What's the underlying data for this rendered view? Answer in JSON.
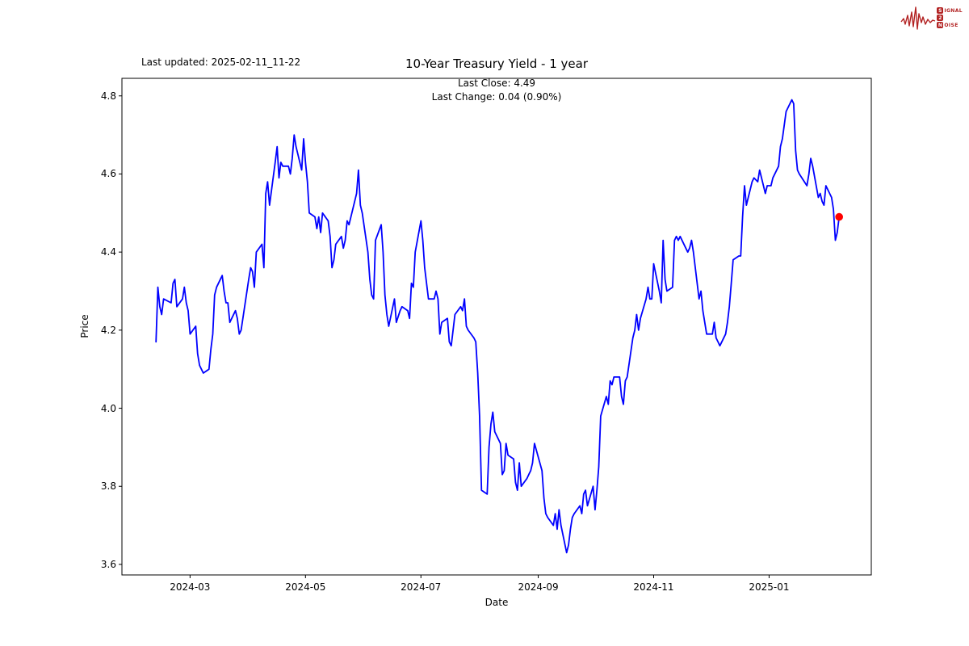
{
  "window": {
    "background": "#ffffff"
  },
  "annotations": {
    "last_updated": "Last updated: 2025-02-11_11-22"
  },
  "logo": {
    "name": "signal-2-noise",
    "color": "#b22222",
    "rows": [
      {
        "initial": "S",
        "rest": "IGNAL"
      },
      {
        "initial": "2",
        "rest": ""
      },
      {
        "initial": "N",
        "rest": "OISE"
      }
    ]
  },
  "chart_data": {
    "type": "line",
    "title": "10-Year Treasury Yield - 1 year",
    "subtitle_lines": [
      "Last Close: 4.49",
      "Last Change: 0.04 (0.90%)"
    ],
    "last_close": 4.49,
    "last_change": "0.04 (0.90%)",
    "xlabel": "Date",
    "ylabel": "Price",
    "grid": false,
    "legend": "none",
    "line_color": "#0000ff",
    "last_point_marker_color": "#ff0000",
    "xlim": [
      "2024-01-25",
      "2025-02-24"
    ],
    "ylim": [
      3.573,
      4.845
    ],
    "yticks": [
      {
        "label": "3.6",
        "value": 3.6
      },
      {
        "label": "3.8",
        "value": 3.8
      },
      {
        "label": "4.0",
        "value": 4.0
      },
      {
        "label": "4.2",
        "value": 4.2
      },
      {
        "label": "4.4",
        "value": 4.4
      },
      {
        "label": "4.6",
        "value": 4.6
      },
      {
        "label": "4.8",
        "value": 4.8
      }
    ],
    "xticks": [
      {
        "label": "2024-03",
        "date": "2024-03-01"
      },
      {
        "label": "2024-05",
        "date": "2024-05-01"
      },
      {
        "label": "2024-07",
        "date": "2024-07-01"
      },
      {
        "label": "2024-09",
        "date": "2024-09-01"
      },
      {
        "label": "2024-11",
        "date": "2024-11-01"
      },
      {
        "label": "2025-01",
        "date": "2025-01-01"
      }
    ],
    "series": [
      [
        "2024-02-12",
        4.17
      ],
      [
        "2024-02-13",
        4.31
      ],
      [
        "2024-02-14",
        4.26
      ],
      [
        "2024-02-15",
        4.24
      ],
      [
        "2024-02-16",
        4.28
      ],
      [
        "2024-02-20",
        4.27
      ],
      [
        "2024-02-21",
        4.32
      ],
      [
        "2024-02-22",
        4.33
      ],
      [
        "2024-02-23",
        4.26
      ],
      [
        "2024-02-26",
        4.28
      ],
      [
        "2024-02-27",
        4.31
      ],
      [
        "2024-02-28",
        4.27
      ],
      [
        "2024-02-29",
        4.25
      ],
      [
        "2024-03-01",
        4.19
      ],
      [
        "2024-03-04",
        4.21
      ],
      [
        "2024-03-05",
        4.14
      ],
      [
        "2024-03-06",
        4.11
      ],
      [
        "2024-03-07",
        4.1
      ],
      [
        "2024-03-08",
        4.09
      ],
      [
        "2024-03-11",
        4.1
      ],
      [
        "2024-03-12",
        4.15
      ],
      [
        "2024-03-13",
        4.19
      ],
      [
        "2024-03-14",
        4.29
      ],
      [
        "2024-03-15",
        4.31
      ],
      [
        "2024-03-18",
        4.34
      ],
      [
        "2024-03-19",
        4.3
      ],
      [
        "2024-03-20",
        4.27
      ],
      [
        "2024-03-21",
        4.27
      ],
      [
        "2024-03-22",
        4.22
      ],
      [
        "2024-03-25",
        4.25
      ],
      [
        "2024-03-26",
        4.23
      ],
      [
        "2024-03-27",
        4.19
      ],
      [
        "2024-03-28",
        4.2
      ],
      [
        "2024-04-01",
        4.33
      ],
      [
        "2024-04-02",
        4.36
      ],
      [
        "2024-04-03",
        4.35
      ],
      [
        "2024-04-04",
        4.31
      ],
      [
        "2024-04-05",
        4.4
      ],
      [
        "2024-04-08",
        4.42
      ],
      [
        "2024-04-09",
        4.36
      ],
      [
        "2024-04-10",
        4.55
      ],
      [
        "2024-04-11",
        4.58
      ],
      [
        "2024-04-12",
        4.52
      ],
      [
        "2024-04-15",
        4.63
      ],
      [
        "2024-04-16",
        4.67
      ],
      [
        "2024-04-17",
        4.59
      ],
      [
        "2024-04-18",
        4.63
      ],
      [
        "2024-04-19",
        4.62
      ],
      [
        "2024-04-22",
        4.62
      ],
      [
        "2024-04-23",
        4.6
      ],
      [
        "2024-04-24",
        4.64
      ],
      [
        "2024-04-25",
        4.7
      ],
      [
        "2024-04-26",
        4.67
      ],
      [
        "2024-04-29",
        4.61
      ],
      [
        "2024-04-30",
        4.69
      ],
      [
        "2024-05-01",
        4.63
      ],
      [
        "2024-05-02",
        4.58
      ],
      [
        "2024-05-03",
        4.5
      ],
      [
        "2024-05-06",
        4.49
      ],
      [
        "2024-05-07",
        4.46
      ],
      [
        "2024-05-08",
        4.49
      ],
      [
        "2024-05-09",
        4.45
      ],
      [
        "2024-05-10",
        4.5
      ],
      [
        "2024-05-13",
        4.48
      ],
      [
        "2024-05-14",
        4.44
      ],
      [
        "2024-05-15",
        4.36
      ],
      [
        "2024-05-16",
        4.38
      ],
      [
        "2024-05-17",
        4.42
      ],
      [
        "2024-05-20",
        4.44
      ],
      [
        "2024-05-21",
        4.41
      ],
      [
        "2024-05-22",
        4.43
      ],
      [
        "2024-05-23",
        4.48
      ],
      [
        "2024-05-24",
        4.47
      ],
      [
        "2024-05-28",
        4.55
      ],
      [
        "2024-05-29",
        4.61
      ],
      [
        "2024-05-30",
        4.52
      ],
      [
        "2024-05-31",
        4.5
      ],
      [
        "2024-06-03",
        4.4
      ],
      [
        "2024-06-04",
        4.33
      ],
      [
        "2024-06-05",
        4.29
      ],
      [
        "2024-06-06",
        4.28
      ],
      [
        "2024-06-07",
        4.43
      ],
      [
        "2024-06-10",
        4.47
      ],
      [
        "2024-06-11",
        4.4
      ],
      [
        "2024-06-12",
        4.29
      ],
      [
        "2024-06-13",
        4.24
      ],
      [
        "2024-06-14",
        4.21
      ],
      [
        "2024-06-17",
        4.28
      ],
      [
        "2024-06-18",
        4.22
      ],
      [
        "2024-06-20",
        4.25
      ],
      [
        "2024-06-21",
        4.26
      ],
      [
        "2024-06-24",
        4.25
      ],
      [
        "2024-06-25",
        4.23
      ],
      [
        "2024-06-26",
        4.32
      ],
      [
        "2024-06-27",
        4.31
      ],
      [
        "2024-06-28",
        4.4
      ],
      [
        "2024-07-01",
        4.48
      ],
      [
        "2024-07-02",
        4.43
      ],
      [
        "2024-07-03",
        4.36
      ],
      [
        "2024-07-05",
        4.28
      ],
      [
        "2024-07-08",
        4.28
      ],
      [
        "2024-07-09",
        4.3
      ],
      [
        "2024-07-10",
        4.28
      ],
      [
        "2024-07-11",
        4.19
      ],
      [
        "2024-07-12",
        4.22
      ],
      [
        "2024-07-15",
        4.23
      ],
      [
        "2024-07-16",
        4.17
      ],
      [
        "2024-07-17",
        4.16
      ],
      [
        "2024-07-18",
        4.2
      ],
      [
        "2024-07-19",
        4.24
      ],
      [
        "2024-07-22",
        4.26
      ],
      [
        "2024-07-23",
        4.25
      ],
      [
        "2024-07-24",
        4.28
      ],
      [
        "2024-07-25",
        4.21
      ],
      [
        "2024-07-26",
        4.2
      ],
      [
        "2024-07-29",
        4.18
      ],
      [
        "2024-07-30",
        4.17
      ],
      [
        "2024-07-31",
        4.09
      ],
      [
        "2024-08-01",
        3.98
      ],
      [
        "2024-08-02",
        3.79
      ],
      [
        "2024-08-05",
        3.78
      ],
      [
        "2024-08-06",
        3.9
      ],
      [
        "2024-08-07",
        3.96
      ],
      [
        "2024-08-08",
        3.99
      ],
      [
        "2024-08-09",
        3.94
      ],
      [
        "2024-08-12",
        3.91
      ],
      [
        "2024-08-13",
        3.83
      ],
      [
        "2024-08-14",
        3.84
      ],
      [
        "2024-08-15",
        3.91
      ],
      [
        "2024-08-16",
        3.88
      ],
      [
        "2024-08-19",
        3.87
      ],
      [
        "2024-08-20",
        3.81
      ],
      [
        "2024-08-21",
        3.79
      ],
      [
        "2024-08-22",
        3.86
      ],
      [
        "2024-08-23",
        3.8
      ],
      [
        "2024-08-26",
        3.82
      ],
      [
        "2024-08-27",
        3.83
      ],
      [
        "2024-08-28",
        3.84
      ],
      [
        "2024-08-29",
        3.86
      ],
      [
        "2024-08-30",
        3.91
      ],
      [
        "2024-09-03",
        3.84
      ],
      [
        "2024-09-04",
        3.77
      ],
      [
        "2024-09-05",
        3.73
      ],
      [
        "2024-09-06",
        3.72
      ],
      [
        "2024-09-09",
        3.7
      ],
      [
        "2024-09-10",
        3.73
      ],
      [
        "2024-09-11",
        3.69
      ],
      [
        "2024-09-12",
        3.74
      ],
      [
        "2024-09-13",
        3.7
      ],
      [
        "2024-09-16",
        3.63
      ],
      [
        "2024-09-17",
        3.65
      ],
      [
        "2024-09-18",
        3.69
      ],
      [
        "2024-09-19",
        3.72
      ],
      [
        "2024-09-20",
        3.73
      ],
      [
        "2024-09-23",
        3.75
      ],
      [
        "2024-09-24",
        3.73
      ],
      [
        "2024-09-25",
        3.78
      ],
      [
        "2024-09-26",
        3.79
      ],
      [
        "2024-09-27",
        3.75
      ],
      [
        "2024-09-30",
        3.8
      ],
      [
        "2024-10-01",
        3.74
      ],
      [
        "2024-10-02",
        3.79
      ],
      [
        "2024-10-03",
        3.85
      ],
      [
        "2024-10-04",
        3.98
      ],
      [
        "2024-10-07",
        4.03
      ],
      [
        "2024-10-08",
        4.01
      ],
      [
        "2024-10-09",
        4.07
      ],
      [
        "2024-10-10",
        4.06
      ],
      [
        "2024-10-11",
        4.08
      ],
      [
        "2024-10-14",
        4.08
      ],
      [
        "2024-10-15",
        4.03
      ],
      [
        "2024-10-16",
        4.01
      ],
      [
        "2024-10-17",
        4.07
      ],
      [
        "2024-10-18",
        4.08
      ],
      [
        "2024-10-21",
        4.18
      ],
      [
        "2024-10-22",
        4.2
      ],
      [
        "2024-10-23",
        4.24
      ],
      [
        "2024-10-24",
        4.2
      ],
      [
        "2024-10-25",
        4.23
      ],
      [
        "2024-10-28",
        4.28
      ],
      [
        "2024-10-29",
        4.31
      ],
      [
        "2024-10-30",
        4.28
      ],
      [
        "2024-10-31",
        4.28
      ],
      [
        "2024-11-01",
        4.37
      ],
      [
        "2024-11-04",
        4.3
      ],
      [
        "2024-11-05",
        4.27
      ],
      [
        "2024-11-06",
        4.43
      ],
      [
        "2024-11-07",
        4.33
      ],
      [
        "2024-11-08",
        4.3
      ],
      [
        "2024-11-11",
        4.31
      ],
      [
        "2024-11-12",
        4.43
      ],
      [
        "2024-11-13",
        4.44
      ],
      [
        "2024-11-14",
        4.43
      ],
      [
        "2024-11-15",
        4.44
      ],
      [
        "2024-11-18",
        4.41
      ],
      [
        "2024-11-19",
        4.4
      ],
      [
        "2024-11-20",
        4.41
      ],
      [
        "2024-11-21",
        4.43
      ],
      [
        "2024-11-22",
        4.4
      ],
      [
        "2024-11-25",
        4.28
      ],
      [
        "2024-11-26",
        4.3
      ],
      [
        "2024-11-27",
        4.25
      ],
      [
        "2024-11-29",
        4.19
      ],
      [
        "2024-12-02",
        4.19
      ],
      [
        "2024-12-03",
        4.22
      ],
      [
        "2024-12-04",
        4.18
      ],
      [
        "2024-12-05",
        4.17
      ],
      [
        "2024-12-06",
        4.16
      ],
      [
        "2024-12-09",
        4.19
      ],
      [
        "2024-12-10",
        4.22
      ],
      [
        "2024-12-11",
        4.26
      ],
      [
        "2024-12-12",
        4.32
      ],
      [
        "2024-12-13",
        4.38
      ],
      [
        "2024-12-16",
        4.39
      ],
      [
        "2024-12-17",
        4.39
      ],
      [
        "2024-12-18",
        4.49
      ],
      [
        "2024-12-19",
        4.57
      ],
      [
        "2024-12-20",
        4.52
      ],
      [
        "2024-12-23",
        4.58
      ],
      [
        "2024-12-24",
        4.59
      ],
      [
        "2024-12-26",
        4.58
      ],
      [
        "2024-12-27",
        4.61
      ],
      [
        "2024-12-30",
        4.55
      ],
      [
        "2024-12-31",
        4.57
      ],
      [
        "2025-01-02",
        4.57
      ],
      [
        "2025-01-03",
        4.59
      ],
      [
        "2025-01-06",
        4.62
      ],
      [
        "2025-01-07",
        4.67
      ],
      [
        "2025-01-08",
        4.69
      ],
      [
        "2025-01-10",
        4.76
      ],
      [
        "2025-01-13",
        4.79
      ],
      [
        "2025-01-14",
        4.78
      ],
      [
        "2025-01-15",
        4.66
      ],
      [
        "2025-01-16",
        4.61
      ],
      [
        "2025-01-17",
        4.6
      ],
      [
        "2025-01-21",
        4.57
      ],
      [
        "2025-01-22",
        4.6
      ],
      [
        "2025-01-23",
        4.64
      ],
      [
        "2025-01-24",
        4.62
      ],
      [
        "2025-01-27",
        4.54
      ],
      [
        "2025-01-28",
        4.55
      ],
      [
        "2025-01-29",
        4.53
      ],
      [
        "2025-01-30",
        4.52
      ],
      [
        "2025-01-31",
        4.57
      ],
      [
        "2025-02-03",
        4.54
      ],
      [
        "2025-02-04",
        4.51
      ],
      [
        "2025-02-05",
        4.43
      ],
      [
        "2025-02-06",
        4.45
      ],
      [
        "2025-02-07",
        4.49
      ]
    ]
  }
}
